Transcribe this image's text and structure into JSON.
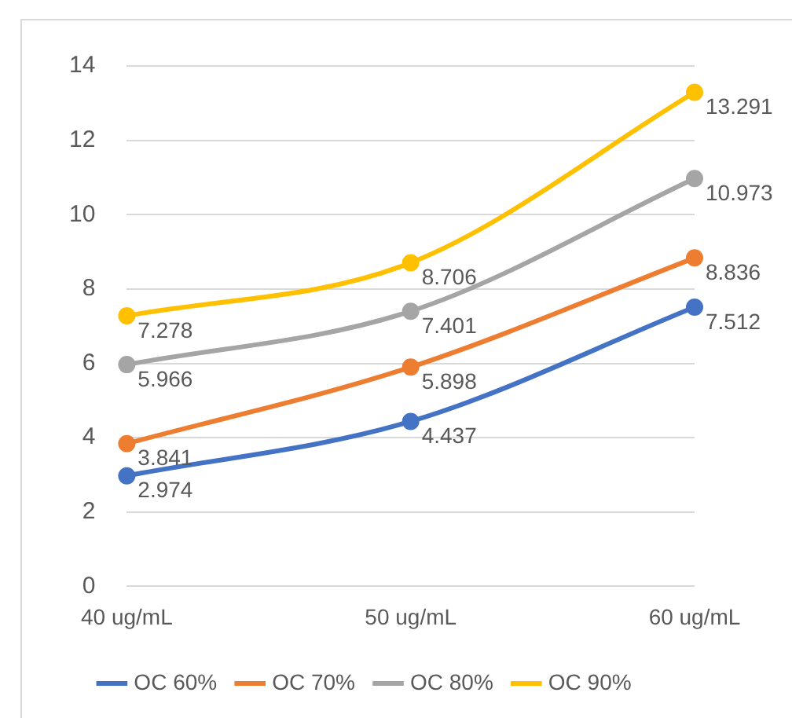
{
  "chart_data": {
    "type": "line",
    "categories": [
      "40 ug/mL",
      "50 ug/mL",
      "60 ug/mL"
    ],
    "series": [
      {
        "name": "OC 60%",
        "color": "#4472c4",
        "values": [
          2.974,
          4.437,
          7.512
        ]
      },
      {
        "name": "OC 70%",
        "color": "#ed7d31",
        "values": [
          3.841,
          5.898,
          8.836
        ]
      },
      {
        "name": "OC 80%",
        "color": "#a5a5a5",
        "values": [
          5.966,
          7.401,
          10.973
        ]
      },
      {
        "name": "OC 90%",
        "color": "#ffc000",
        "values": [
          7.278,
          8.706,
          13.291
        ]
      }
    ],
    "ylim": [
      0,
      14
    ],
    "yticks": [
      0,
      2,
      4,
      6,
      8,
      10,
      12,
      14
    ],
    "grid": "y",
    "legend": "bottom",
    "marker": "circle",
    "line_style": "solid",
    "data_labels": true
  }
}
